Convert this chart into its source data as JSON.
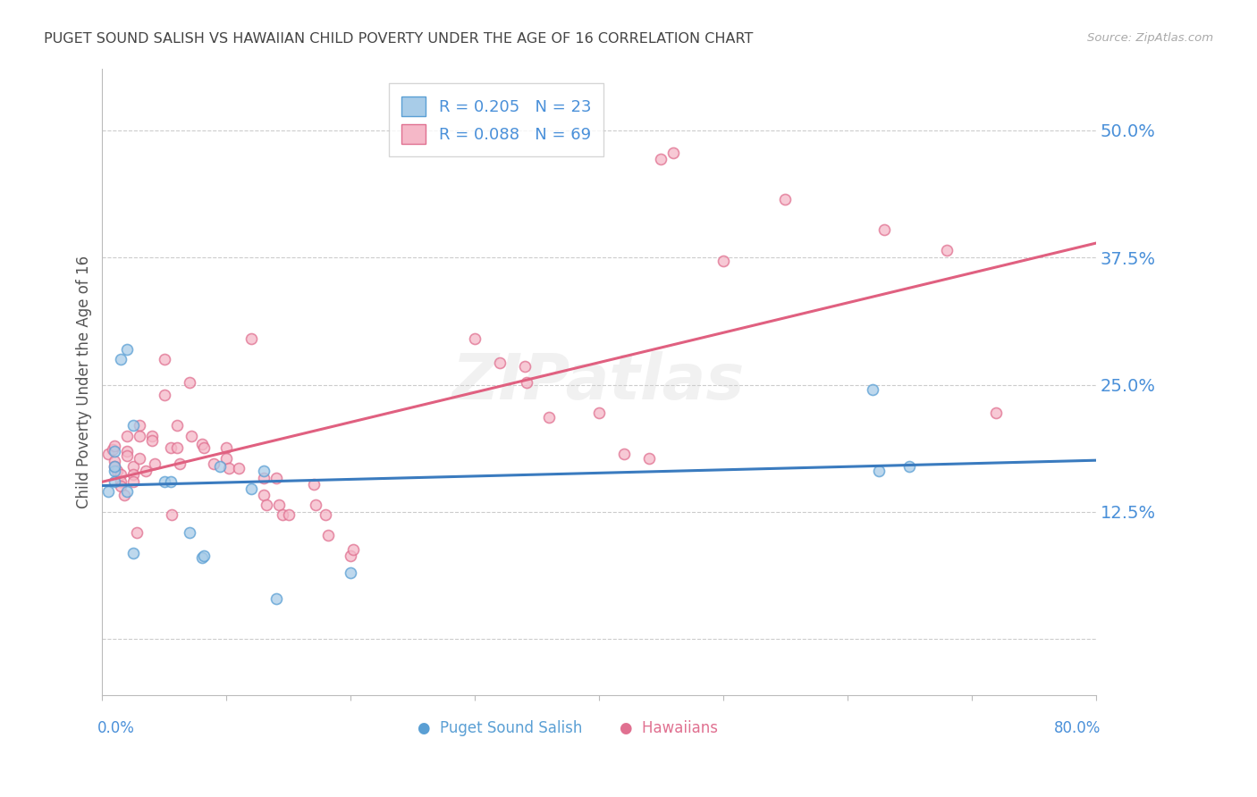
{
  "title": "PUGET SOUND SALISH VS HAWAIIAN CHILD POVERTY UNDER THE AGE OF 16 CORRELATION CHART",
  "source": "Source: ZipAtlas.com",
  "ylabel": "Child Poverty Under the Age of 16",
  "xlim": [
    0.0,
    0.8
  ],
  "ylim": [
    -0.055,
    0.56
  ],
  "ytick_vals": [
    0.0,
    0.125,
    0.25,
    0.375,
    0.5
  ],
  "ytick_labels": [
    "",
    "12.5%",
    "25.0%",
    "37.5%",
    "50.0%"
  ],
  "xtick_label_left": "0.0%",
  "xtick_label_right": "80.0%",
  "salish_color": "#a8cce8",
  "salish_edge": "#5a9fd4",
  "hawaiian_color": "#f5b8c8",
  "hawaiian_edge": "#e07090",
  "salish_line_color": "#3a7bbf",
  "hawaiian_line_color": "#e06080",
  "legend_label_salish": "R = 0.205   N = 23",
  "legend_label_hawaiian": "R = 0.088   N = 69",
  "background_color": "#ffffff",
  "grid_color": "#cccccc",
  "title_color": "#444444",
  "tick_color": "#4a90d9",
  "axis_color": "#bbbbbb",
  "watermark": "ZIPatlas",
  "marker_size": 75,
  "salish_x": [
    0.01,
    0.015,
    0.02,
    0.025,
    0.01,
    0.01,
    0.01,
    0.005,
    0.02,
    0.025,
    0.05,
    0.055,
    0.07,
    0.08,
    0.082,
    0.095,
    0.12,
    0.13,
    0.14,
    0.2,
    0.62,
    0.625,
    0.65
  ],
  "salish_y": [
    0.165,
    0.275,
    0.285,
    0.21,
    0.185,
    0.17,
    0.155,
    0.145,
    0.145,
    0.085,
    0.155,
    0.155,
    0.105,
    0.08,
    0.082,
    0.17,
    0.148,
    0.165,
    0.04,
    0.065,
    0.245,
    0.165,
    0.17
  ],
  "hawaiian_x": [
    0.005,
    0.008,
    0.01,
    0.01,
    0.01,
    0.012,
    0.015,
    0.015,
    0.015,
    0.018,
    0.02,
    0.02,
    0.02,
    0.025,
    0.025,
    0.025,
    0.028,
    0.03,
    0.03,
    0.03,
    0.035,
    0.04,
    0.04,
    0.042,
    0.05,
    0.05,
    0.055,
    0.056,
    0.06,
    0.06,
    0.062,
    0.07,
    0.072,
    0.08,
    0.082,
    0.09,
    0.1,
    0.1,
    0.102,
    0.11,
    0.12,
    0.13,
    0.13,
    0.132,
    0.14,
    0.142,
    0.145,
    0.15,
    0.17,
    0.172,
    0.18,
    0.182,
    0.2,
    0.202,
    0.3,
    0.32,
    0.34,
    0.342,
    0.36,
    0.4,
    0.42,
    0.44,
    0.45,
    0.46,
    0.5,
    0.55,
    0.63,
    0.68,
    0.72
  ],
  "hawaiian_y": [
    0.182,
    0.186,
    0.19,
    0.175,
    0.17,
    0.165,
    0.162,
    0.155,
    0.15,
    0.142,
    0.2,
    0.185,
    0.18,
    0.17,
    0.162,
    0.155,
    0.105,
    0.21,
    0.2,
    0.178,
    0.165,
    0.2,
    0.195,
    0.172,
    0.275,
    0.24,
    0.188,
    0.122,
    0.21,
    0.188,
    0.172,
    0.252,
    0.2,
    0.192,
    0.188,
    0.172,
    0.188,
    0.178,
    0.168,
    0.168,
    0.295,
    0.158,
    0.142,
    0.132,
    0.158,
    0.132,
    0.122,
    0.122,
    0.152,
    0.132,
    0.122,
    0.102,
    0.082,
    0.088,
    0.295,
    0.272,
    0.268,
    0.252,
    0.218,
    0.222,
    0.182,
    0.178,
    0.472,
    0.478,
    0.372,
    0.432,
    0.402,
    0.382,
    0.222
  ]
}
